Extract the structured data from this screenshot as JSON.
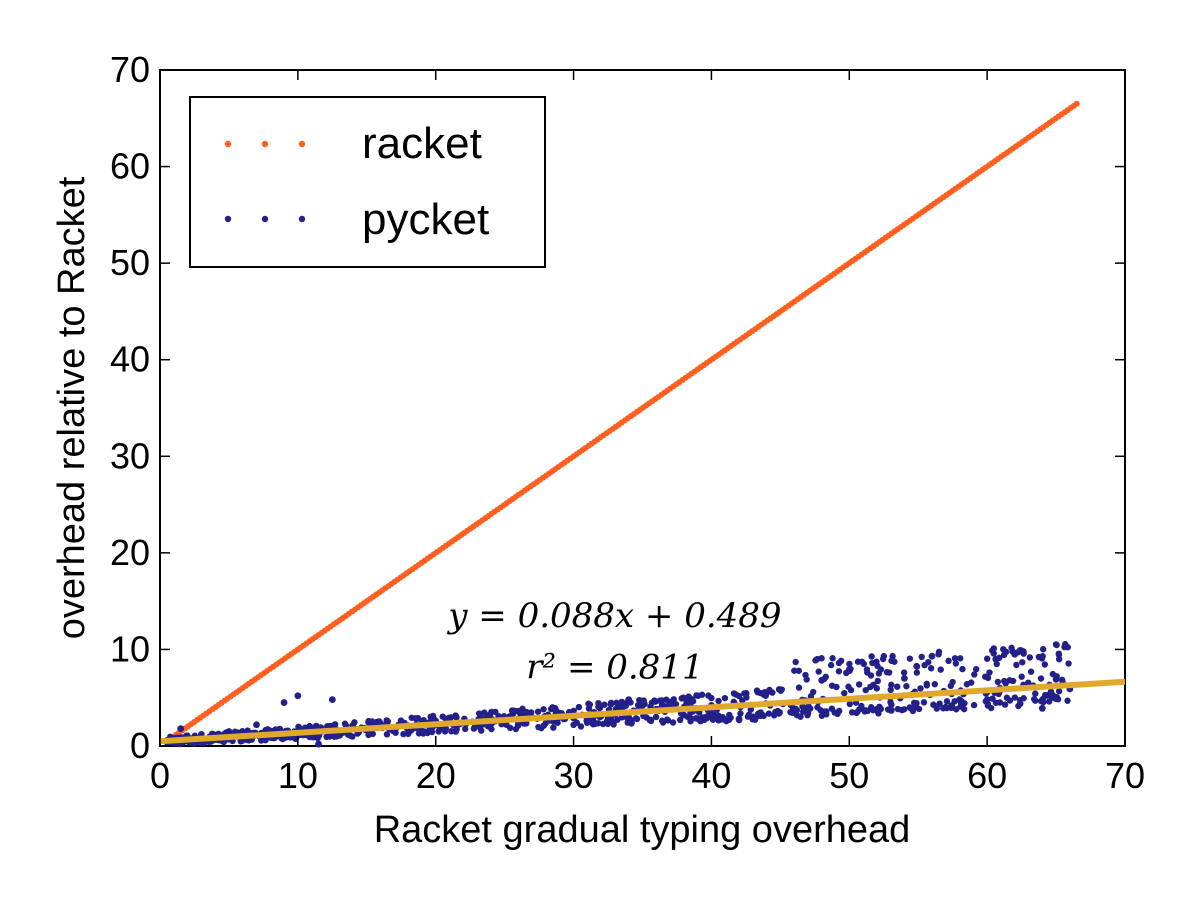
{
  "chart_data": {
    "type": "scatter",
    "title": "",
    "xlabel": "Racket gradual typing overhead",
    "ylabel": "overhead relative to Racket",
    "xlim": [
      0,
      70
    ],
    "ylim": [
      0,
      70
    ],
    "xticks": [
      "0",
      "10",
      "20",
      "30",
      "40",
      "50",
      "60",
      "70"
    ],
    "yticks": [
      "0",
      "10",
      "20",
      "30",
      "40",
      "50",
      "60",
      "70"
    ],
    "grid": false,
    "legend_position": "top-left",
    "series": [
      {
        "name": "racket",
        "color": "#ff5f1f",
        "description": "y equals x",
        "x_range": [
          0.5,
          66.7
        ]
      },
      {
        "name": "pycket",
        "color": "#24208a",
        "description": "scattered points, approx 0.088x + 0.489 with spread",
        "sample_points": [
          [
            0.5,
            0.4
          ],
          [
            1.0,
            0.7
          ],
          [
            1.5,
            1.8
          ],
          [
            2.0,
            0.9
          ],
          [
            3.0,
            1.2
          ],
          [
            4.0,
            0.8
          ],
          [
            5.0,
            1.5
          ],
          [
            6.0,
            1.1
          ],
          [
            7.0,
            2.2
          ],
          [
            8.0,
            1.0
          ],
          [
            9.0,
            4.5
          ],
          [
            10.0,
            5.2
          ],
          [
            11.0,
            1.3
          ],
          [
            11.5,
            0.2
          ],
          [
            12.5,
            4.8
          ],
          [
            14.0,
            2.0
          ],
          [
            16.0,
            2.3
          ],
          [
            18.0,
            2.1
          ],
          [
            20.0,
            2.6
          ],
          [
            22.0,
            2.5
          ],
          [
            24.0,
            2.7
          ],
          [
            26.0,
            2.4
          ],
          [
            28.0,
            3.0
          ],
          [
            30.0,
            2.9
          ],
          [
            32.0,
            3.1
          ],
          [
            34.0,
            4.8
          ],
          [
            36.0,
            3.8
          ],
          [
            38.0,
            3.2
          ],
          [
            40.0,
            4.2
          ],
          [
            42.0,
            2.8
          ],
          [
            44.0,
            5.5
          ],
          [
            46.0,
            3.5
          ],
          [
            48.0,
            6.8
          ],
          [
            50.0,
            7.9
          ],
          [
            52.0,
            3.8
          ],
          [
            54.0,
            7.0
          ],
          [
            56.0,
            9.3
          ],
          [
            58.0,
            4.8
          ],
          [
            60.0,
            5.6
          ],
          [
            62.0,
            9.5
          ],
          [
            64.0,
            3.9
          ],
          [
            65.0,
            6.9
          ],
          [
            66.0,
            5.9
          ]
        ]
      }
    ],
    "fit_line": {
      "color": "#e0a92c",
      "slope": 0.088,
      "intercept": 0.489,
      "x_range": [
        0,
        70
      ]
    },
    "annotations": [
      {
        "text": "y = 0.088x + 0.489",
        "x": 33,
        "y": 12.3
      },
      {
        "text": "r² = 0.811",
        "x": 33,
        "y": 7.0
      }
    ]
  }
}
